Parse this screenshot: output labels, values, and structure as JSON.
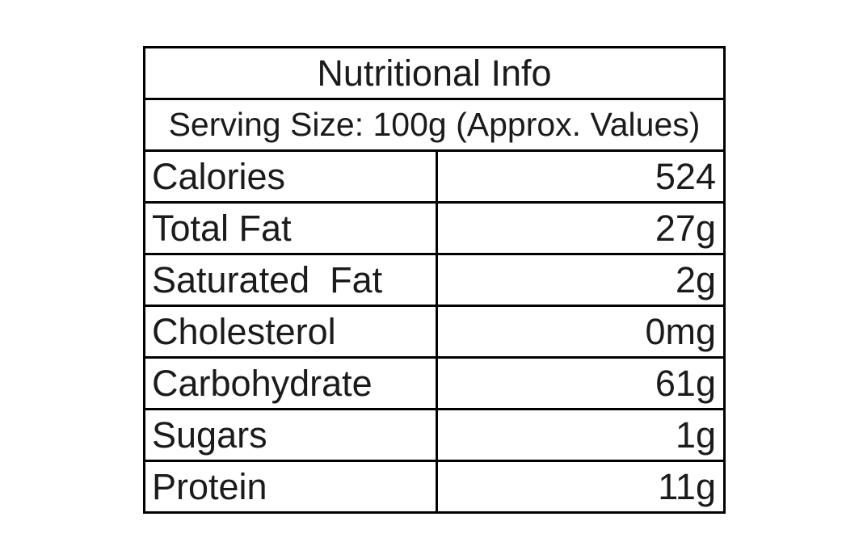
{
  "page": {
    "background": "#ffffff",
    "text_color": "#1b1b1b",
    "border_color": "#000000"
  },
  "nutrition_table": {
    "title": "Nutritional Info",
    "serving_size_line": "Serving Size: 100g (Approx. Values)",
    "rows": [
      {
        "label": "Calories",
        "value": "524"
      },
      {
        "label": "Total Fat",
        "value": "27g"
      },
      {
        "label": "Saturated  Fat",
        "value": "2g"
      },
      {
        "label": "Cholesterol",
        "value": "0mg"
      },
      {
        "label": "Carbohydrate",
        "value": "61g"
      },
      {
        "label": "Sugars",
        "value": "1g"
      },
      {
        "label": "Protein",
        "value": "11g"
      }
    ]
  }
}
